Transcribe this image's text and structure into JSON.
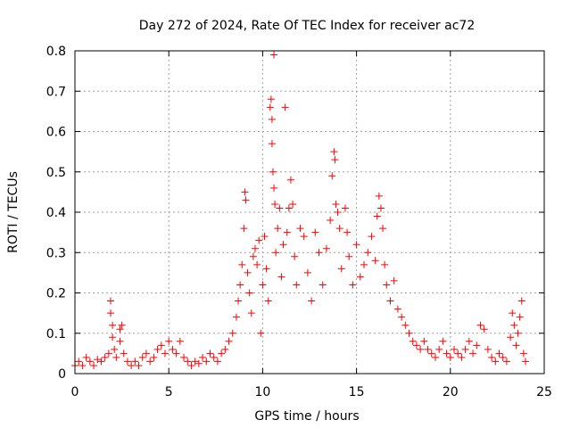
{
  "chart_data": {
    "type": "scatter",
    "title": "Day 272 of 2024, Rate Of TEC Index for receiver ac72",
    "xlabel": "GPS time / hours",
    "ylabel": "ROTI / TECUs",
    "xlim": [
      0,
      25
    ],
    "ylim": [
      0,
      0.8
    ],
    "x_ticks": [
      0,
      5,
      10,
      15,
      20,
      25
    ],
    "y_ticks": [
      0,
      0.1,
      0.2,
      0.3,
      0.4,
      0.5,
      0.6,
      0.7,
      0.8
    ],
    "x_tick_labels": [
      "0",
      "5",
      "10",
      "15",
      "20",
      "25"
    ],
    "y_tick_labels": [
      "0",
      "0.1",
      "0.2",
      "0.3",
      "0.4",
      "0.5",
      "0.6",
      "0.7",
      "0.8"
    ],
    "grid": true,
    "marker": "plus",
    "color": "#ff0000",
    "series": [
      {
        "points": [
          [
            0.0,
            0.02
          ],
          [
            0.2,
            0.03
          ],
          [
            0.4,
            0.02
          ],
          [
            0.6,
            0.04
          ],
          [
            0.8,
            0.03
          ],
          [
            1.0,
            0.02
          ],
          [
            1.2,
            0.035
          ],
          [
            1.4,
            0.03
          ],
          [
            1.6,
            0.04
          ],
          [
            1.8,
            0.05
          ],
          [
            1.9,
            0.18
          ],
          [
            1.9,
            0.15
          ],
          [
            2.0,
            0.12
          ],
          [
            2.0,
            0.09
          ],
          [
            2.1,
            0.06
          ],
          [
            2.2,
            0.04
          ],
          [
            2.4,
            0.08
          ],
          [
            2.4,
            0.11
          ],
          [
            2.5,
            0.12
          ],
          [
            2.6,
            0.05
          ],
          [
            2.8,
            0.03
          ],
          [
            3.0,
            0.02
          ],
          [
            3.2,
            0.03
          ],
          [
            3.4,
            0.02
          ],
          [
            3.6,
            0.04
          ],
          [
            3.8,
            0.05
          ],
          [
            4.0,
            0.03
          ],
          [
            4.2,
            0.04
          ],
          [
            4.4,
            0.06
          ],
          [
            4.6,
            0.07
          ],
          [
            4.8,
            0.05
          ],
          [
            5.0,
            0.08
          ],
          [
            5.2,
            0.06
          ],
          [
            5.4,
            0.05
          ],
          [
            5.6,
            0.08
          ],
          [
            5.8,
            0.04
          ],
          [
            6.0,
            0.03
          ],
          [
            6.2,
            0.02
          ],
          [
            6.4,
            0.03
          ],
          [
            6.6,
            0.025
          ],
          [
            6.8,
            0.04
          ],
          [
            7.0,
            0.03
          ],
          [
            7.2,
            0.05
          ],
          [
            7.4,
            0.04
          ],
          [
            7.6,
            0.03
          ],
          [
            7.8,
            0.05
          ],
          [
            8.0,
            0.06
          ],
          [
            8.2,
            0.08
          ],
          [
            8.4,
            0.1
          ],
          [
            8.6,
            0.14
          ],
          [
            8.7,
            0.18
          ],
          [
            8.8,
            0.22
          ],
          [
            8.9,
            0.27
          ],
          [
            9.0,
            0.36
          ],
          [
            9.05,
            0.45
          ],
          [
            9.1,
            0.43
          ],
          [
            9.2,
            0.25
          ],
          [
            9.3,
            0.2
          ],
          [
            9.4,
            0.15
          ],
          [
            9.5,
            0.29
          ],
          [
            9.6,
            0.31
          ],
          [
            9.7,
            0.27
          ],
          [
            9.8,
            0.33
          ],
          [
            9.9,
            0.1
          ],
          [
            10.0,
            0.22
          ],
          [
            10.1,
            0.34
          ],
          [
            10.2,
            0.26
          ],
          [
            10.3,
            0.18
          ],
          [
            10.4,
            0.66
          ],
          [
            10.45,
            0.68
          ],
          [
            10.5,
            0.63
          ],
          [
            10.5,
            0.57
          ],
          [
            10.55,
            0.5
          ],
          [
            10.6,
            0.79
          ],
          [
            10.6,
            0.46
          ],
          [
            10.65,
            0.42
          ],
          [
            10.7,
            0.3
          ],
          [
            10.8,
            0.36
          ],
          [
            10.9,
            0.41
          ],
          [
            11.0,
            0.24
          ],
          [
            11.1,
            0.32
          ],
          [
            11.2,
            0.66
          ],
          [
            11.3,
            0.35
          ],
          [
            11.4,
            0.41
          ],
          [
            11.5,
            0.48
          ],
          [
            11.6,
            0.42
          ],
          [
            11.7,
            0.29
          ],
          [
            11.8,
            0.22
          ],
          [
            12.0,
            0.36
          ],
          [
            12.2,
            0.34
          ],
          [
            12.4,
            0.25
          ],
          [
            12.6,
            0.18
          ],
          [
            12.8,
            0.35
          ],
          [
            13.0,
            0.3
          ],
          [
            13.2,
            0.22
          ],
          [
            13.4,
            0.31
          ],
          [
            13.6,
            0.38
          ],
          [
            13.7,
            0.49
          ],
          [
            13.8,
            0.55
          ],
          [
            13.85,
            0.53
          ],
          [
            13.9,
            0.42
          ],
          [
            14.0,
            0.4
          ],
          [
            14.1,
            0.36
          ],
          [
            14.2,
            0.26
          ],
          [
            14.4,
            0.41
          ],
          [
            14.5,
            0.35
          ],
          [
            14.6,
            0.29
          ],
          [
            14.8,
            0.22
          ],
          [
            15.0,
            0.32
          ],
          [
            15.2,
            0.24
          ],
          [
            15.4,
            0.27
          ],
          [
            15.6,
            0.3
          ],
          [
            15.8,
            0.34
          ],
          [
            16.0,
            0.28
          ],
          [
            16.1,
            0.39
          ],
          [
            16.2,
            0.44
          ],
          [
            16.3,
            0.41
          ],
          [
            16.4,
            0.36
          ],
          [
            16.5,
            0.27
          ],
          [
            16.6,
            0.22
          ],
          [
            16.8,
            0.18
          ],
          [
            17.0,
            0.23
          ],
          [
            17.2,
            0.16
          ],
          [
            17.4,
            0.14
          ],
          [
            17.6,
            0.12
          ],
          [
            17.8,
            0.1
          ],
          [
            18.0,
            0.08
          ],
          [
            18.2,
            0.07
          ],
          [
            18.4,
            0.06
          ],
          [
            18.6,
            0.08
          ],
          [
            18.8,
            0.06
          ],
          [
            19.0,
            0.05
          ],
          [
            19.2,
            0.04
          ],
          [
            19.4,
            0.06
          ],
          [
            19.6,
            0.08
          ],
          [
            19.8,
            0.05
          ],
          [
            20.0,
            0.04
          ],
          [
            20.2,
            0.06
          ],
          [
            20.4,
            0.05
          ],
          [
            20.6,
            0.04
          ],
          [
            20.8,
            0.06
          ],
          [
            21.0,
            0.08
          ],
          [
            21.2,
            0.05
          ],
          [
            21.4,
            0.07
          ],
          [
            21.6,
            0.12
          ],
          [
            21.8,
            0.11
          ],
          [
            22.0,
            0.06
          ],
          [
            22.2,
            0.04
          ],
          [
            22.4,
            0.03
          ],
          [
            22.6,
            0.05
          ],
          [
            22.8,
            0.04
          ],
          [
            23.0,
            0.03
          ],
          [
            23.2,
            0.09
          ],
          [
            23.3,
            0.15
          ],
          [
            23.4,
            0.12
          ],
          [
            23.5,
            0.07
          ],
          [
            23.6,
            0.1
          ],
          [
            23.7,
            0.14
          ],
          [
            23.8,
            0.18
          ],
          [
            23.9,
            0.05
          ],
          [
            24.0,
            0.03
          ]
        ]
      }
    ]
  }
}
